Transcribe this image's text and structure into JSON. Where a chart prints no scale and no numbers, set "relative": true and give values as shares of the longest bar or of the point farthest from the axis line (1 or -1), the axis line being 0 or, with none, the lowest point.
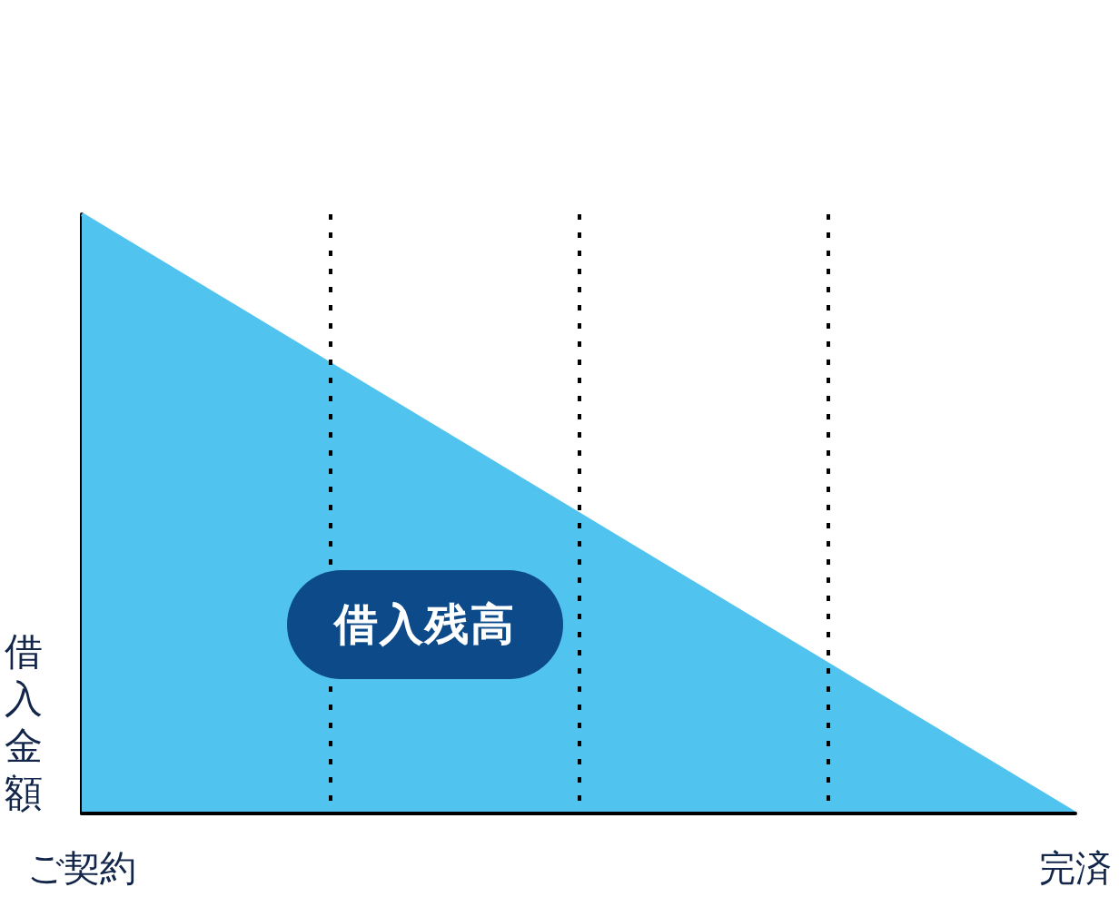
{
  "chart_data": {
    "type": "area",
    "ylabel": "借入金額",
    "categories": [
      "ご契約",
      null,
      null,
      null,
      "完済"
    ],
    "series": [
      {
        "name": "借入残高",
        "color": "#50c3ee",
        "values": [
          1,
          0.75,
          0.5,
          0.25,
          0
        ]
      }
    ],
    "relative": true,
    "grid": "x"
  }
}
